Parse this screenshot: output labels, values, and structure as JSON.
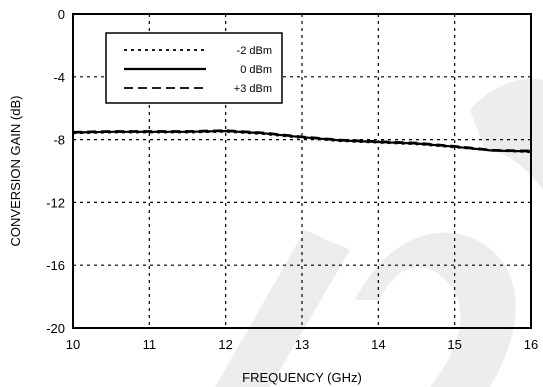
{
  "chart_data": {
    "type": "line",
    "title": "",
    "xlabel": "FREQUENCY (GHz)",
    "ylabel": "CONVERSION GAIN (dB)",
    "xlim": [
      10,
      16
    ],
    "ylim": [
      -20,
      0
    ],
    "xticks": [
      "10",
      "11",
      "12",
      "13",
      "14",
      "15",
      "16"
    ],
    "yticks": [
      "0",
      "-4",
      "-8",
      "-12",
      "-16",
      "-20"
    ],
    "grid": true,
    "legend_position": "top-left",
    "series": [
      {
        "name": "-2 dBm",
        "line_style": "dotted",
        "color": "#000000",
        "x": [
          10,
          10.5,
          11,
          11.5,
          12,
          12.5,
          13,
          13.5,
          14,
          14.5,
          15,
          15.5,
          16
        ],
        "y": [
          -7.6,
          -7.55,
          -7.55,
          -7.55,
          -7.5,
          -7.65,
          -7.9,
          -8.1,
          -8.2,
          -8.3,
          -8.5,
          -8.7,
          -8.8
        ]
      },
      {
        "name": "0 dBm",
        "line_style": "solid",
        "color": "#000000",
        "x": [
          10,
          10.5,
          11,
          11.5,
          12,
          12.5,
          13,
          13.5,
          14,
          14.5,
          15,
          15.5,
          16
        ],
        "y": [
          -7.55,
          -7.5,
          -7.5,
          -7.5,
          -7.45,
          -7.6,
          -7.85,
          -8.05,
          -8.15,
          -8.25,
          -8.45,
          -8.7,
          -8.75
        ]
      },
      {
        "name": "+3 dBm",
        "line_style": "dashed",
        "color": "#000000",
        "x": [
          10,
          10.5,
          11,
          11.5,
          12,
          12.5,
          13,
          13.5,
          14,
          14.5,
          15,
          15.5,
          16
        ],
        "y": [
          -7.5,
          -7.45,
          -7.45,
          -7.45,
          -7.4,
          -7.55,
          -7.8,
          -8.0,
          -8.1,
          -8.2,
          -8.4,
          -8.65,
          -8.7
        ]
      }
    ]
  }
}
